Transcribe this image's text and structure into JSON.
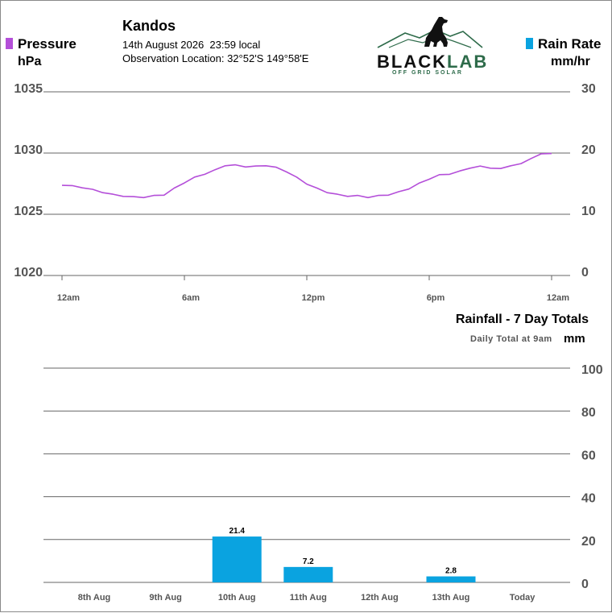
{
  "header": {
    "station": "Kandos",
    "datetime": "14th August 2026  23:59 local",
    "location": "Observation Location: 32°52'S 149°58'E"
  },
  "logo": {
    "brand_black": "BLACK",
    "brand_green": "LAB",
    "tagline": "OFF GRID SOLAR"
  },
  "legend": {
    "pressure": {
      "label": "Pressure",
      "unit": "hPa",
      "color": "#b44fd9"
    },
    "rain_rate": {
      "label": "Rain Rate",
      "unit": "mm/hr",
      "color": "#0aa3e0"
    }
  },
  "colors": {
    "brand_green": "#2e6b4a",
    "bar": "#0aa3e0",
    "pressure_line": "#b44fd9"
  },
  "chart_data": [
    {
      "type": "line",
      "series": [
        {
          "name": "Pressure",
          "x": [
            0,
            0.5,
            1,
            1.5,
            2,
            2.5,
            3,
            3.5,
            4,
            4.5,
            5,
            5.5,
            6,
            6.5,
            7,
            7.5,
            8,
            8.5,
            9,
            9.5,
            10,
            10.5,
            11,
            11.5,
            12,
            12.5,
            13,
            13.5,
            14,
            14.5,
            15,
            15.5,
            16,
            16.5,
            17,
            17.5,
            18,
            18.5,
            19,
            19.5,
            20,
            20.5,
            21,
            21.5,
            22,
            22.5,
            23,
            23.5,
            24
          ],
          "values": [
            1027.4,
            1027.3,
            1027.2,
            1027.0,
            1026.8,
            1026.6,
            1026.5,
            1026.4,
            1026.4,
            1026.5,
            1026.6,
            1027.1,
            1027.6,
            1028.0,
            1028.3,
            1028.6,
            1029.0,
            1029.0,
            1028.9,
            1028.9,
            1029.0,
            1028.8,
            1028.5,
            1028.0,
            1027.5,
            1027.1,
            1026.8,
            1026.6,
            1026.5,
            1026.5,
            1026.4,
            1026.5,
            1026.6,
            1026.8,
            1027.1,
            1027.5,
            1027.9,
            1028.2,
            1028.3,
            1028.5,
            1028.8,
            1028.9,
            1028.8,
            1028.7,
            1029.0,
            1029.1,
            1029.6,
            1029.9,
            1030.0
          ]
        }
      ],
      "ylabel_left": "hPa",
      "ylabel_right": "mm/hr",
      "ylim_left": [
        1020,
        1035
      ],
      "ylim_right": [
        0,
        30
      ],
      "yticks_left": [
        "1035",
        "1030",
        "1025",
        "1020"
      ],
      "yticks_right": [
        "30",
        "20",
        "10",
        "0"
      ],
      "xticks": [
        "12am",
        "6am",
        "12pm",
        "6pm",
        "12am"
      ],
      "xlim": [
        0,
        24
      ],
      "grid": true
    },
    {
      "type": "bar",
      "title": "Rainfall - 7 Day Totals",
      "subtitle": "Daily Total at 9am",
      "ylabel": "mm",
      "categories": [
        "8th Aug",
        "9th Aug",
        "10th Aug",
        "11th Aug",
        "12th Aug",
        "13th Aug",
        "Today"
      ],
      "values": [
        0,
        0,
        21.4,
        7.2,
        0,
        2.8,
        0
      ],
      "data_labels": [
        "",
        "",
        "21.4",
        "7.2",
        "",
        "2.8",
        ""
      ],
      "ylim": [
        0,
        100
      ],
      "yticks": [
        "100",
        "80",
        "60",
        "40",
        "20",
        "0"
      ],
      "grid": true
    }
  ]
}
